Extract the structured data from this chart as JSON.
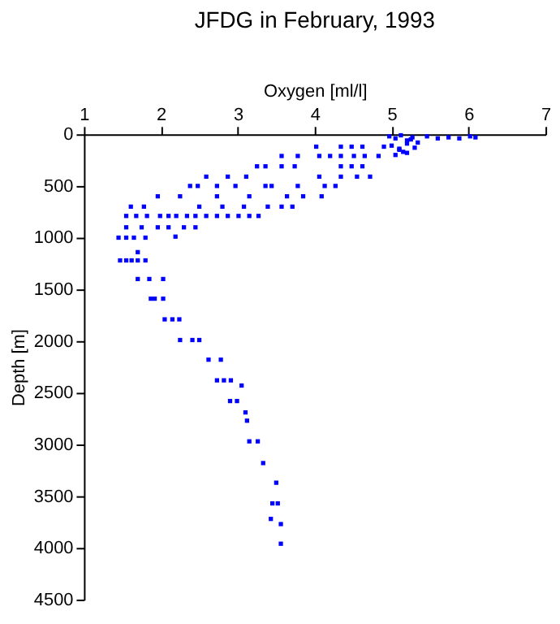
{
  "chart_data": {
    "type": "scatter",
    "title": "JFDG in February, 1993",
    "xlabel": "Oxygen [ml/l]",
    "ylabel": "Depth [m]",
    "xlim": [
      1,
      7
    ],
    "xticks": [
      1,
      2,
      3,
      4,
      5,
      6,
      7
    ],
    "ylim": [
      4500,
      0
    ],
    "yticks": [
      0,
      500,
      1000,
      1500,
      2000,
      2500,
      3000,
      3500,
      4000,
      4500
    ],
    "grid": false,
    "marker": "square",
    "legend": false,
    "series": [
      {
        "color": "#0000ff",
        "x": [
          1.47,
          1.55,
          1.62,
          1.7,
          1.8,
          1.7,
          1.7,
          1.85,
          2.03,
          1.87,
          1.92,
          2.03,
          2.05,
          2.15,
          2.24,
          2.25,
          2.41,
          2.5,
          2.62,
          2.78,
          2.73,
          2.82,
          2.91,
          3.05,
          2.9,
          2.99,
          3.1,
          3.12,
          3.15,
          3.26,
          3.33,
          3.5,
          3.45,
          3.52,
          3.43,
          3.56,
          3.56,
          1.45,
          1.55,
          1.65,
          1.8,
          2.19,
          1.55,
          1.75,
          1.96,
          2.1,
          2.3,
          2.45,
          1.55,
          1.68,
          1.82,
          1.99,
          2.1,
          2.2,
          2.34,
          2.45,
          2.59,
          2.73,
          2.87,
          3.01,
          3.15,
          3.27,
          1.61,
          1.78,
          2.5,
          2.8,
          3.08,
          3.39,
          3.57,
          3.71,
          1.96,
          2.25,
          2.73,
          3.15,
          3.64,
          3.85,
          4.09,
          2.38,
          2.48,
          2.73,
          2.97,
          3.36,
          3.44,
          3.78,
          4.13,
          4.27,
          2.59,
          2.87,
          3.11,
          4.06,
          4.34,
          4.55,
          4.72,
          3.25,
          3.36,
          3.57,
          3.74,
          4.34,
          4.48,
          4.62,
          3.57,
          3.78,
          4.06,
          4.2,
          4.34,
          4.51,
          4.65,
          4.83,
          4.02,
          4.34,
          4.48,
          4.62,
          4.9,
          4.97,
          5.05,
          5.12,
          5.2,
          5.27,
          5.34,
          5.0,
          5.1,
          5.2,
          5.3,
          5.05,
          5.15,
          5.25,
          5.1,
          5.2,
          5.46,
          5.6,
          5.74,
          5.88,
          6.02,
          6.09
        ],
        "values": [
          1220,
          1220,
          1220,
          1220,
          1220,
          1140,
          1400,
          1400,
          1400,
          1590,
          1590,
          1590,
          1790,
          1790,
          1790,
          1990,
          1990,
          1990,
          2180,
          2180,
          2380,
          2380,
          2380,
          2430,
          2580,
          2580,
          2690,
          2770,
          2970,
          2970,
          3180,
          3370,
          3570,
          3570,
          3720,
          3770,
          3960,
          1000,
          1000,
          1000,
          1000,
          990,
          900,
          900,
          900,
          900,
          900,
          900,
          790,
          790,
          790,
          790,
          790,
          790,
          790,
          790,
          790,
          790,
          790,
          790,
          790,
          790,
          700,
          700,
          700,
          700,
          700,
          700,
          700,
          700,
          600,
          600,
          600,
          600,
          600,
          600,
          600,
          500,
          500,
          500,
          500,
          500,
          500,
          500,
          500,
          500,
          410,
          410,
          410,
          410,
          410,
          410,
          410,
          310,
          310,
          310,
          310,
          310,
          310,
          310,
          210,
          210,
          210,
          210,
          210,
          210,
          210,
          210,
          120,
          120,
          120,
          120,
          120,
          20,
          40,
          10,
          60,
          30,
          80,
          110,
          150,
          90,
          130,
          200,
          170,
          50,
          140,
          180,
          20,
          40,
          30,
          40,
          20,
          30
        ]
      }
    ]
  }
}
